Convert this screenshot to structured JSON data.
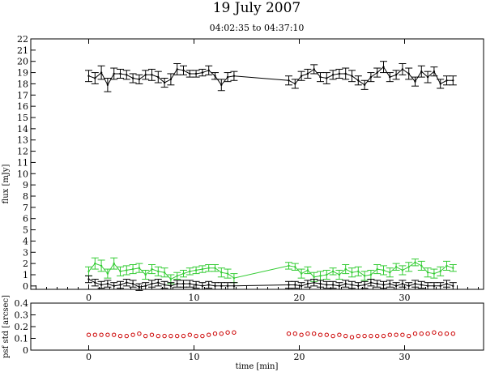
{
  "chart_data": [
    {
      "type": "line",
      "title": "19 July 2007",
      "subtitle": "04:02:35 to 04:37:10",
      "xlabel": "",
      "ylabel": "flux [mJy]",
      "xlim": [
        -5.5,
        37.5
      ],
      "ylim": [
        -0.3,
        22
      ],
      "x_ticks": [
        0,
        10,
        20,
        30
      ],
      "y_ticks": [
        0,
        1,
        2,
        3,
        4,
        5,
        6,
        7,
        8,
        9,
        10,
        11,
        12,
        13,
        14,
        15,
        16,
        17,
        18,
        19,
        20,
        21,
        22
      ],
      "grid": false,
      "series": [
        {
          "color": "#000000",
          "x": [
            0.0,
            0.6,
            1.2,
            1.8,
            2.4,
            3.0,
            3.6,
            4.2,
            4.8,
            5.4,
            6.0,
            6.6,
            7.2,
            7.8,
            8.4,
            9.0,
            9.6,
            10.2,
            10.8,
            11.4,
            12.0,
            12.6,
            13.2,
            13.8,
            19.0,
            19.6,
            20.2,
            20.8,
            21.4,
            22.0,
            22.6,
            23.2,
            23.8,
            24.4,
            25.0,
            25.6,
            26.2,
            26.8,
            27.4,
            28.0,
            28.6,
            29.2,
            29.8,
            30.4,
            31.0,
            31.6,
            32.2,
            32.8,
            33.4,
            34.0,
            34.6
          ],
          "y": [
            18.7,
            18.5,
            19.0,
            17.9,
            18.9,
            18.9,
            18.8,
            18.5,
            18.4,
            18.8,
            18.8,
            18.6,
            18.1,
            18.4,
            19.3,
            19.2,
            18.9,
            18.9,
            19.0,
            19.2,
            18.7,
            17.9,
            18.6,
            18.7,
            18.3,
            18.0,
            18.7,
            18.9,
            19.3,
            18.6,
            18.5,
            18.8,
            18.9,
            18.9,
            18.7,
            18.3,
            17.9,
            18.6,
            19.0,
            19.5,
            18.6,
            18.8,
            19.3,
            18.9,
            18.2,
            19.1,
            18.6,
            19.1,
            18.0,
            18.3,
            18.3
          ],
          "err": [
            0.5,
            0.5,
            0.6,
            0.6,
            0.5,
            0.4,
            0.4,
            0.4,
            0.4,
            0.4,
            0.5,
            0.5,
            0.4,
            0.5,
            0.5,
            0.4,
            0.3,
            0.3,
            0.3,
            0.4,
            0.3,
            0.5,
            0.4,
            0.4,
            0.4,
            0.4,
            0.4,
            0.4,
            0.4,
            0.4,
            0.5,
            0.4,
            0.4,
            0.5,
            0.5,
            0.4,
            0.4,
            0.4,
            0.4,
            0.5,
            0.4,
            0.4,
            0.5,
            0.5,
            0.4,
            0.5,
            0.5,
            0.4,
            0.4,
            0.4,
            0.4
          ]
        },
        {
          "color": "#33cc33",
          "x": [
            0.0,
            0.6,
            1.2,
            1.8,
            2.4,
            3.0,
            3.6,
            4.2,
            4.8,
            5.4,
            6.0,
            6.6,
            7.2,
            7.8,
            8.4,
            9.0,
            9.6,
            10.2,
            10.8,
            11.4,
            12.0,
            12.6,
            13.2,
            13.8,
            19.0,
            19.6,
            20.2,
            20.8,
            21.4,
            22.0,
            22.6,
            23.2,
            23.8,
            24.4,
            25.0,
            25.6,
            26.2,
            26.8,
            27.4,
            28.0,
            28.6,
            29.2,
            29.8,
            30.4,
            31.0,
            31.6,
            32.2,
            32.8,
            33.4,
            34.0,
            34.6
          ],
          "y": [
            1.3,
            2.0,
            1.8,
            1.1,
            2.0,
            1.3,
            1.4,
            1.5,
            1.6,
            1.0,
            1.5,
            1.3,
            1.2,
            0.6,
            0.9,
            1.1,
            1.3,
            1.4,
            1.5,
            1.6,
            1.6,
            1.2,
            1.1,
            0.7,
            1.8,
            1.7,
            1.1,
            1.4,
            0.8,
            0.9,
            1.0,
            1.3,
            1.0,
            1.5,
            1.2,
            1.3,
            0.9,
            1.0,
            1.5,
            1.4,
            1.2,
            1.7,
            1.4,
            1.7,
            2.1,
            1.8,
            1.2,
            1.1,
            1.3,
            1.8,
            1.6
          ],
          "err": [
            0.4,
            0.5,
            0.5,
            0.4,
            0.5,
            0.4,
            0.4,
            0.4,
            0.4,
            0.4,
            0.4,
            0.4,
            0.4,
            0.4,
            0.3,
            0.3,
            0.3,
            0.3,
            0.3,
            0.3,
            0.3,
            0.4,
            0.4,
            0.4,
            0.3,
            0.3,
            0.4,
            0.3,
            0.4,
            0.4,
            0.4,
            0.3,
            0.4,
            0.4,
            0.4,
            0.4,
            0.4,
            0.4,
            0.4,
            0.4,
            0.4,
            0.3,
            0.4,
            0.4,
            0.3,
            0.4,
            0.4,
            0.4,
            0.4,
            0.4,
            0.3
          ]
        },
        {
          "color": "#000000",
          "x": [
            0.0,
            0.6,
            1.2,
            1.8,
            2.4,
            3.0,
            3.6,
            4.2,
            4.8,
            5.4,
            6.0,
            6.6,
            7.2,
            7.8,
            8.4,
            9.0,
            9.6,
            10.2,
            10.8,
            11.4,
            12.0,
            12.6,
            13.2,
            13.8,
            19.0,
            19.6,
            20.2,
            20.8,
            21.4,
            22.0,
            22.6,
            23.2,
            23.8,
            24.4,
            25.0,
            25.6,
            26.2,
            26.8,
            27.4,
            28.0,
            28.6,
            29.2,
            29.8,
            30.4,
            31.0,
            31.6,
            32.2,
            32.8,
            33.4,
            34.0,
            34.6
          ],
          "y": [
            0.6,
            0.3,
            0.1,
            0.2,
            0.0,
            0.1,
            0.3,
            0.2,
            -0.1,
            0.0,
            0.2,
            0.3,
            0.1,
            0.0,
            0.2,
            0.2,
            0.2,
            0.1,
            0.0,
            0.1,
            0.0,
            0.0,
            0.0,
            0.0,
            0.1,
            0.1,
            0.0,
            0.2,
            0.3,
            0.2,
            0.1,
            0.1,
            0.0,
            0.2,
            0.1,
            0.0,
            0.1,
            0.3,
            0.2,
            0.1,
            0.2,
            0.0,
            0.2,
            0.0,
            0.2,
            0.1,
            0.0,
            0.0,
            0.0,
            0.2,
            0.0
          ],
          "err": [
            0.3,
            0.3,
            0.3,
            0.3,
            0.3,
            0.3,
            0.3,
            0.3,
            0.3,
            0.3,
            0.3,
            0.3,
            0.3,
            0.3,
            0.3,
            0.3,
            0.3,
            0.3,
            0.3,
            0.3,
            0.3,
            0.3,
            0.3,
            0.3,
            0.3,
            0.3,
            0.3,
            0.3,
            0.3,
            0.3,
            0.3,
            0.3,
            0.3,
            0.3,
            0.3,
            0.3,
            0.3,
            0.3,
            0.3,
            0.3,
            0.3,
            0.3,
            0.3,
            0.3,
            0.3,
            0.3,
            0.3,
            0.3,
            0.3,
            0.3,
            0.3
          ]
        }
      ]
    },
    {
      "type": "scatter",
      "xlabel": "time [min]",
      "ylabel": "psf std [arcsec]",
      "xlim": [
        -5.5,
        37.5
      ],
      "ylim": [
        0,
        0.4
      ],
      "x_ticks": [
        0,
        10,
        20,
        30
      ],
      "y_ticks": [
        0,
        0.1,
        0.2,
        0.3,
        0.4
      ],
      "grid": false,
      "series": [
        {
          "color": "#cc0000",
          "x": [
            0.0,
            0.6,
            1.2,
            1.8,
            2.4,
            3.0,
            3.6,
            4.2,
            4.8,
            5.4,
            6.0,
            6.6,
            7.2,
            7.8,
            8.4,
            9.0,
            9.6,
            10.2,
            10.8,
            11.4,
            12.0,
            12.6,
            13.2,
            13.8,
            19.0,
            19.6,
            20.2,
            20.8,
            21.4,
            22.0,
            22.6,
            23.2,
            23.8,
            24.4,
            25.0,
            25.6,
            26.2,
            26.8,
            27.4,
            28.0,
            28.6,
            29.2,
            29.8,
            30.4,
            31.0,
            31.6,
            32.2,
            32.8,
            33.4,
            34.0,
            34.6
          ],
          "y": [
            0.13,
            0.13,
            0.13,
            0.13,
            0.13,
            0.12,
            0.12,
            0.13,
            0.14,
            0.12,
            0.13,
            0.12,
            0.12,
            0.12,
            0.12,
            0.12,
            0.13,
            0.12,
            0.12,
            0.13,
            0.14,
            0.14,
            0.15,
            0.15,
            0.14,
            0.14,
            0.13,
            0.14,
            0.14,
            0.13,
            0.13,
            0.12,
            0.13,
            0.12,
            0.11,
            0.12,
            0.12,
            0.12,
            0.12,
            0.12,
            0.13,
            0.13,
            0.13,
            0.12,
            0.14,
            0.14,
            0.14,
            0.15,
            0.14,
            0.14,
            0.14
          ]
        }
      ]
    }
  ]
}
